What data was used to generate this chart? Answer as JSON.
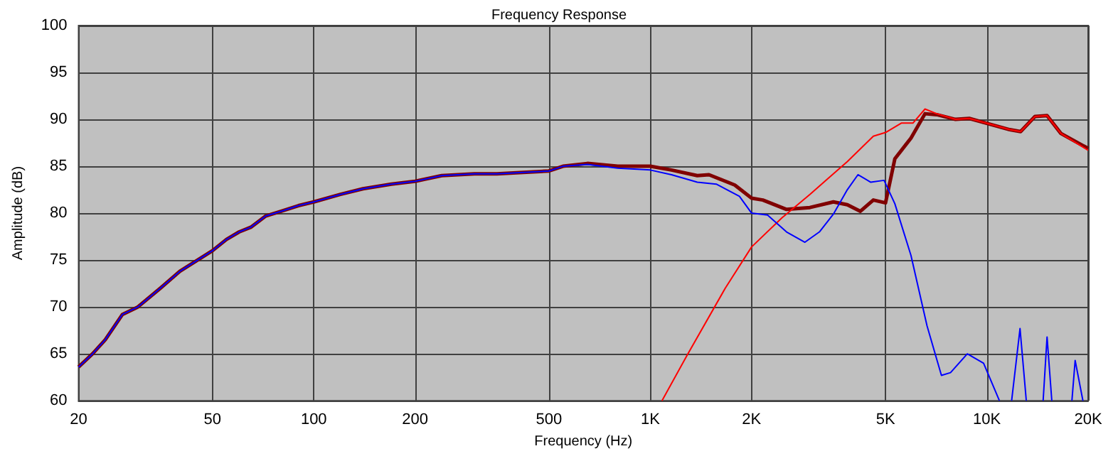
{
  "chart_data": {
    "type": "line",
    "title": "Frequency Response",
    "xlabel": "Frequency (Hz)",
    "ylabel": "Amplitude (dB)",
    "log": "x",
    "grid": true,
    "marker": "none",
    "line_style": "solid",
    "xlim": [
      20,
      20000
    ],
    "xticks": [
      20,
      50,
      100,
      200,
      500,
      {
        "value": 1000,
        "label": "1K"
      },
      {
        "value": 2000,
        "label": "2K"
      },
      {
        "value": 5000,
        "label": "5K"
      },
      {
        "value": 10000,
        "label": "10K"
      },
      {
        "value": 20000,
        "label": "20K"
      }
    ],
    "ylim": [
      60,
      100
    ],
    "yticks": [
      60,
      65,
      70,
      75,
      80,
      85,
      90,
      95,
      100
    ],
    "series": [
      {
        "color": "#800000",
        "x": [
          20,
          22,
          24,
          27,
          30,
          35,
          40,
          50,
          55,
          60,
          65,
          72,
          80,
          90,
          100,
          120,
          140,
          170,
          200,
          240,
          300,
          350,
          400,
          500,
          550,
          650,
          800,
          1000,
          1156,
          1379,
          1494,
          1782,
          2000,
          2160,
          2540,
          2980,
          3500,
          3850,
          4210,
          4600,
          5000,
          5330,
          5950,
          6550,
          7100,
          8070,
          8870,
          9950,
          11700,
          12600,
          13900,
          15100,
          16600,
          20000
        ],
        "values": [
          63.6,
          65,
          66.5,
          69.2,
          70,
          72,
          73.8,
          76,
          77.2,
          78,
          78.5,
          79.7,
          80.2,
          80.8,
          81.2,
          82,
          82.6,
          83.1,
          83.4,
          84,
          84.2,
          84.2,
          84.3,
          84.5,
          85,
          85.3,
          85,
          85,
          84.6,
          84,
          84.1,
          83,
          81.6,
          81.4,
          80.4,
          80.6,
          81.2,
          80.9,
          80.2,
          81.4,
          81.1,
          85.8,
          88,
          90.6,
          90.5,
          90,
          90.1,
          89.6,
          88.9,
          88.7,
          90.3,
          90.4,
          88.5,
          86.9
        ]
      },
      {
        "color": "#ff0000",
        "x": [
          1083,
          1293,
          1670,
          2000,
          2460,
          2980,
          3850,
          4600,
          5000,
          5570,
          6030,
          6550,
          7100,
          8070,
          8870,
          9950,
          11700,
          12600,
          13900,
          15100,
          16600,
          20000
        ],
        "values": [
          60,
          65,
          72,
          76.4,
          79.5,
          82,
          85.5,
          88.2,
          88.6,
          89.6,
          89.6,
          91.1,
          90.6,
          90,
          90.1,
          89.6,
          88.9,
          88.7,
          90.3,
          90.4,
          88.5,
          86.7
        ]
      },
      {
        "color": "#0000ff",
        "x": [
          20,
          22,
          24,
          27,
          30,
          35,
          40,
          50,
          55,
          60,
          65,
          72,
          80,
          90,
          100,
          120,
          140,
          170,
          200,
          240,
          300,
          350,
          400,
          500,
          550,
          650,
          800,
          1000,
          1156,
          1379,
          1570,
          1840,
          2000,
          2230,
          2540,
          2880,
          3180,
          3500,
          3850,
          4140,
          4520,
          4950,
          5330,
          5950,
          6640,
          7330,
          7800,
          8750,
          9780,
          10900,
          11300,
          11850,
          12550,
          13100,
          13900,
          14700,
          15100,
          15600,
          16600,
          17900,
          18300,
          19300
        ],
        "values": [
          63.6,
          65,
          66.5,
          69.2,
          70,
          72,
          73.8,
          76,
          77.2,
          78,
          78.5,
          79.7,
          80.2,
          80.8,
          81.2,
          82,
          82.6,
          83.1,
          83.4,
          84,
          84.2,
          84.2,
          84.3,
          84.5,
          85,
          85.2,
          84.8,
          84.6,
          84.1,
          83.3,
          83.1,
          81.8,
          80,
          79.8,
          78,
          76.9,
          78,
          79.9,
          82.5,
          84.1,
          83.3,
          83.5,
          81,
          75.5,
          68,
          62.7,
          63,
          65,
          64,
          60,
          null,
          60,
          67.7,
          60,
          null,
          60,
          66.8,
          60,
          null,
          60,
          64.3,
          60
        ]
      }
    ]
  }
}
